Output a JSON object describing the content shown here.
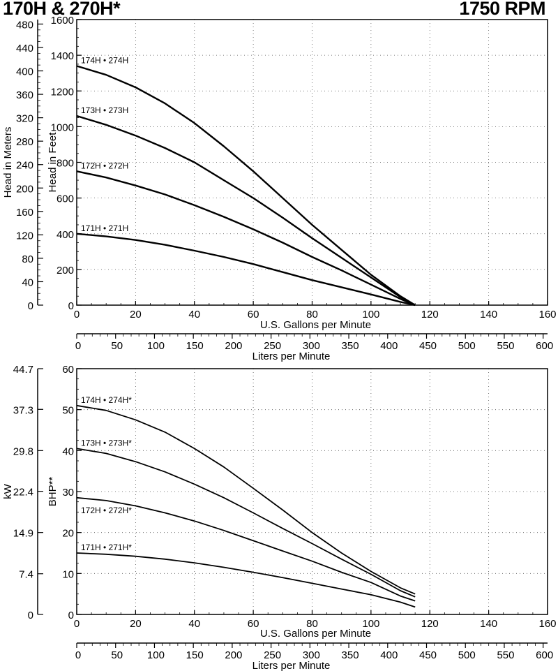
{
  "header": {
    "title": "170H & 270H*",
    "speed": "1750 RPM"
  },
  "chart_data": [
    {
      "type": "line",
      "panel": "head",
      "xlabel": "U.S. Gallons per Minute",
      "ylabel": "Head in Feet",
      "y2label": "Head in Meters",
      "x2label": "Liters per Minute",
      "xlim": [
        0,
        160
      ],
      "ylim": [
        0,
        1600
      ],
      "xticks": [
        0,
        20,
        40,
        60,
        80,
        100,
        120,
        140,
        160
      ],
      "yticks": [
        0,
        200,
        400,
        600,
        800,
        1000,
        1200,
        1400,
        1600
      ],
      "y2ticks": [
        0,
        40,
        80,
        120,
        160,
        200,
        240,
        280,
        320,
        360,
        400,
        440,
        480
      ],
      "x2ticks": [
        0,
        50,
        100,
        150,
        200,
        250,
        300,
        350,
        400,
        450,
        500,
        550,
        600
      ],
      "grid": true,
      "series": [
        {
          "name": "174H • 274H",
          "x": [
            0,
            10,
            20,
            30,
            40,
            50,
            60,
            70,
            80,
            90,
            100,
            110,
            115
          ],
          "y": [
            1340,
            1290,
            1220,
            1130,
            1020,
            890,
            750,
            600,
            450,
            310,
            170,
            50,
            0
          ]
        },
        {
          "name": "173H • 273H",
          "x": [
            0,
            10,
            20,
            30,
            40,
            50,
            60,
            70,
            80,
            90,
            100,
            110,
            115
          ],
          "y": [
            1060,
            1010,
            950,
            880,
            800,
            700,
            600,
            490,
            375,
            265,
            155,
            45,
            0
          ]
        },
        {
          "name": "172H • 272H",
          "x": [
            0,
            10,
            20,
            30,
            40,
            50,
            60,
            70,
            80,
            90,
            100,
            110,
            115
          ],
          "y": [
            750,
            715,
            670,
            620,
            560,
            495,
            425,
            350,
            270,
            195,
            115,
            35,
            0
          ]
        },
        {
          "name": "171H • 271H",
          "x": [
            0,
            10,
            20,
            30,
            40,
            50,
            60,
            70,
            80,
            90,
            100,
            110,
            115
          ],
          "y": [
            400,
            385,
            365,
            338,
            305,
            270,
            230,
            185,
            140,
            100,
            60,
            18,
            0
          ]
        }
      ]
    },
    {
      "type": "line",
      "panel": "power",
      "xlabel": "U.S. Gallons per Minute",
      "ylabel": "BHP**",
      "y2label": "kW",
      "x2label": "Liters per Minute",
      "xlim": [
        0,
        160
      ],
      "ylim": [
        0,
        60
      ],
      "xticks": [
        0,
        20,
        40,
        60,
        80,
        100,
        120,
        140,
        160
      ],
      "yticks": [
        0,
        10,
        20,
        30,
        40,
        50,
        60
      ],
      "y2ticks": [
        "0",
        "7.4",
        "14.9",
        "22.4",
        "29.8",
        "37.3",
        "44.7"
      ],
      "x2ticks": [
        0,
        50,
        100,
        150,
        200,
        250,
        300,
        350,
        400,
        450,
        500,
        550,
        600
      ],
      "grid": true,
      "series": [
        {
          "name": "174H • 274H*",
          "x": [
            0,
            10,
            20,
            30,
            40,
            50,
            60,
            70,
            80,
            90,
            100,
            110,
            115
          ],
          "y": [
            51,
            49.8,
            47.5,
            44.5,
            40.5,
            36,
            30.8,
            25.5,
            20,
            15,
            10.5,
            6.5,
            5
          ]
        },
        {
          "name": "173H • 273H*",
          "x": [
            0,
            10,
            20,
            30,
            40,
            50,
            60,
            70,
            80,
            90,
            100,
            110,
            115
          ],
          "y": [
            40.5,
            39.3,
            37.3,
            34.8,
            31.8,
            28.5,
            24.8,
            21,
            17.3,
            13.5,
            9.8,
            5.8,
            4.3
          ]
        },
        {
          "name": "172H • 272H*",
          "x": [
            0,
            10,
            20,
            30,
            40,
            50,
            60,
            70,
            80,
            90,
            100,
            110,
            115
          ],
          "y": [
            28.5,
            27.8,
            26.5,
            24.8,
            22.8,
            20.5,
            18,
            15.5,
            13,
            10.3,
            7.8,
            4.5,
            3.3
          ]
        },
        {
          "name": "171H • 271H*",
          "x": [
            0,
            10,
            20,
            30,
            40,
            50,
            60,
            70,
            80,
            90,
            100,
            110,
            115
          ],
          "y": [
            15,
            14.7,
            14.2,
            13.5,
            12.6,
            11.5,
            10.3,
            9,
            7.6,
            6.2,
            4.8,
            3,
            1.8
          ]
        }
      ]
    }
  ]
}
